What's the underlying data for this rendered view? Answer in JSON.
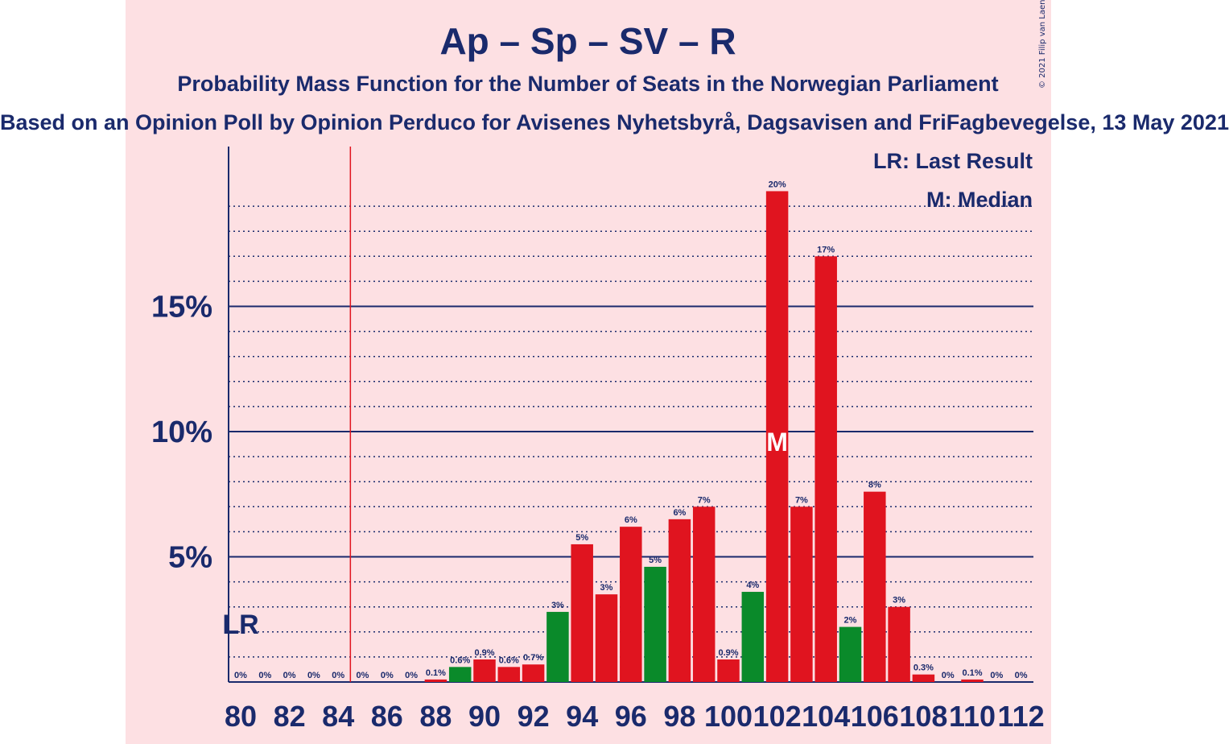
{
  "title": "Ap – Sp – SV – R",
  "subtitle": "Probability Mass Function for the Number of Seats in the Norwegian Parliament",
  "source_line": "Based on an Opinion Poll by Opinion Perduco for Avisenes Nyhetsbyrå, Dagsavisen and FriFagbevegelse, 13 May 2021",
  "legend": {
    "last_result": "LR: Last Result",
    "median": "M: Median"
  },
  "copyright": "© 2021 Filip van Laenen",
  "markers": {
    "last_result_label": "LR",
    "median_label": "M"
  },
  "colors": {
    "red": "#e0141f",
    "green": "#0a8a2a",
    "navy": "#1a2a6c",
    "background": "#fde0e3"
  },
  "chart_data": {
    "type": "bar",
    "title": "Ap – Sp – SV – R",
    "x_label": "",
    "y_label": "",
    "y_ticks": [
      "5%",
      "10%",
      "15%"
    ],
    "x_ticks": [
      "80",
      "82",
      "84",
      "86",
      "88",
      "90",
      "92",
      "94",
      "96",
      "98",
      "100",
      "102",
      "104",
      "106",
      "108",
      "110",
      "112"
    ],
    "ylim": [
      0,
      21.5
    ],
    "grid": true,
    "last_result_seat": 80,
    "majority_seat": 85,
    "median_seat": 102,
    "bars": [
      {
        "seat": 80,
        "value": 0,
        "label": "0%",
        "color": "red"
      },
      {
        "seat": 81,
        "value": 0,
        "label": "0%",
        "color": "green"
      },
      {
        "seat": 82,
        "value": 0,
        "label": "0%",
        "color": "red"
      },
      {
        "seat": 83,
        "value": 0,
        "label": "0%",
        "color": "green"
      },
      {
        "seat": 84,
        "value": 0,
        "label": "0%",
        "color": "red"
      },
      {
        "seat": 85,
        "value": 0,
        "label": "0%",
        "color": "green"
      },
      {
        "seat": 86,
        "value": 0,
        "label": "0%",
        "color": "red"
      },
      {
        "seat": 87,
        "value": 0,
        "label": "0%",
        "color": "green"
      },
      {
        "seat": 88,
        "value": 0.1,
        "label": "0.1%",
        "color": "red"
      },
      {
        "seat": 89,
        "value": 0.6,
        "label": "0.6%",
        "color": "green"
      },
      {
        "seat": 90,
        "value": 0.9,
        "label": "0.9%",
        "color": "red"
      },
      {
        "seat": 91,
        "value": 0.6,
        "label": "0.6%",
        "color": "red"
      },
      {
        "seat": 92,
        "value": 0.7,
        "label": "0.7%",
        "color": "red"
      },
      {
        "seat": 93,
        "value": 2.8,
        "label": "3%",
        "color": "green"
      },
      {
        "seat": 94,
        "value": 5.5,
        "label": "5%",
        "color": "red"
      },
      {
        "seat": 95,
        "value": 3.5,
        "label": "3%",
        "color": "red"
      },
      {
        "seat": 96,
        "value": 6.2,
        "label": "6%",
        "color": "red"
      },
      {
        "seat": 97,
        "value": 4.6,
        "label": "5%",
        "color": "green"
      },
      {
        "seat": 98,
        "value": 6.5,
        "label": "6%",
        "color": "red"
      },
      {
        "seat": 99,
        "value": 7.0,
        "label": "7%",
        "color": "red"
      },
      {
        "seat": 100,
        "value": 0.9,
        "label": "0.9%",
        "color": "red"
      },
      {
        "seat": 101,
        "value": 3.6,
        "label": "4%",
        "color": "green"
      },
      {
        "seat": 102,
        "value": 19.6,
        "label": "20%",
        "color": "red"
      },
      {
        "seat": 103,
        "value": 7.0,
        "label": "7%",
        "color": "red"
      },
      {
        "seat": 104,
        "value": 17.0,
        "label": "17%",
        "color": "red"
      },
      {
        "seat": 105,
        "value": 2.2,
        "label": "2%",
        "color": "green"
      },
      {
        "seat": 106,
        "value": 7.6,
        "label": "8%",
        "color": "red"
      },
      {
        "seat": 107,
        "value": 3.0,
        "label": "3%",
        "color": "red"
      },
      {
        "seat": 108,
        "value": 0.3,
        "label": "0.3%",
        "color": "red"
      },
      {
        "seat": 109,
        "value": 0,
        "label": "0%",
        "color": "green"
      },
      {
        "seat": 110,
        "value": 0.1,
        "label": "0.1%",
        "color": "red"
      },
      {
        "seat": 111,
        "value": 0,
        "label": "0%",
        "color": "green"
      },
      {
        "seat": 112,
        "value": 0,
        "label": "0%",
        "color": "red"
      }
    ]
  }
}
